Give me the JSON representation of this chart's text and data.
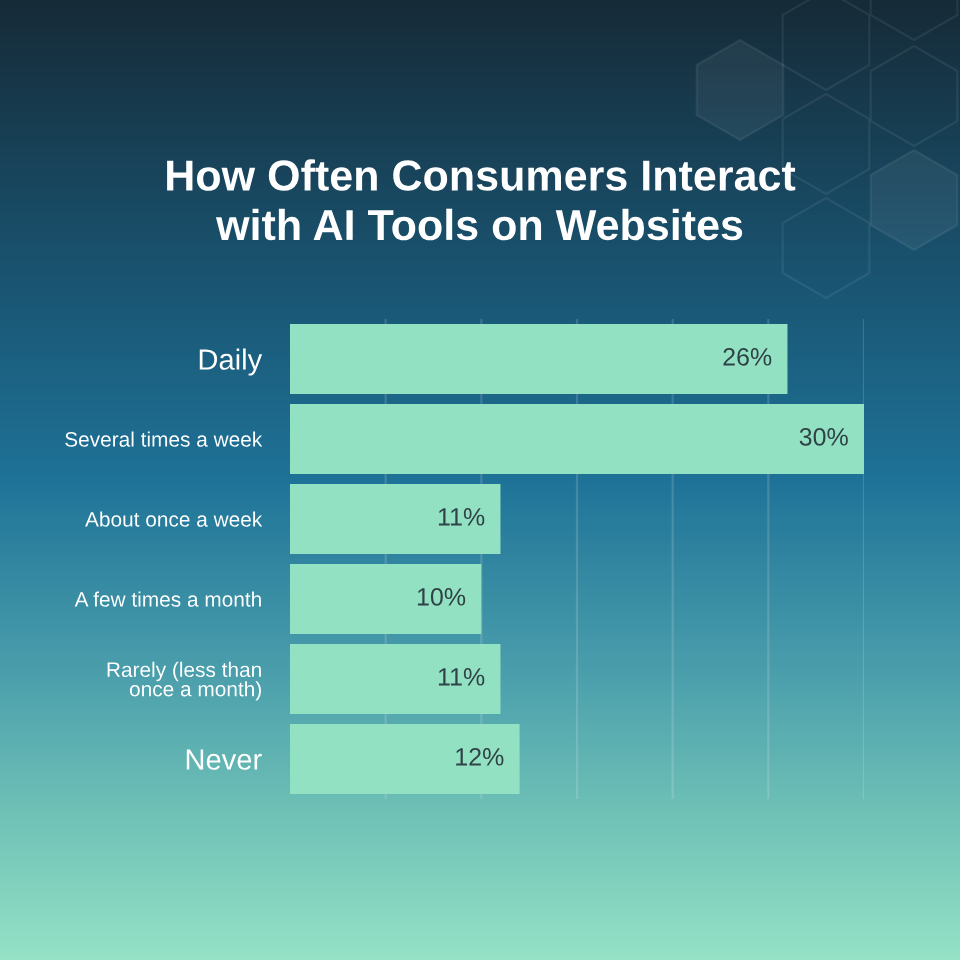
{
  "chart_data": {
    "type": "bar",
    "orientation": "horizontal",
    "title": "How Often Consumers Interact\nwith AI Tools on Websites",
    "categories": [
      "Daily",
      "Several times a week",
      "About once a week",
      "A few times a month",
      "Rarely (less than\nonce a month)",
      "Never"
    ],
    "values": [
      26,
      30,
      11,
      10,
      11,
      12
    ],
    "value_labels": [
      "26%",
      "30%",
      "11%",
      "10%",
      "11%",
      "12%"
    ],
    "color": "#93e1c3",
    "xlim": [
      0,
      30
    ],
    "xticks": [
      {
        "value": 5,
        "label": null
      },
      {
        "value": 10,
        "label": null
      },
      {
        "value": 15,
        "label": null
      },
      {
        "value": 20,
        "label": null
      },
      {
        "value": 25,
        "label": null
      },
      {
        "value": 30,
        "label": null
      }
    ],
    "grid": "x",
    "tick_labels": "y"
  }
}
